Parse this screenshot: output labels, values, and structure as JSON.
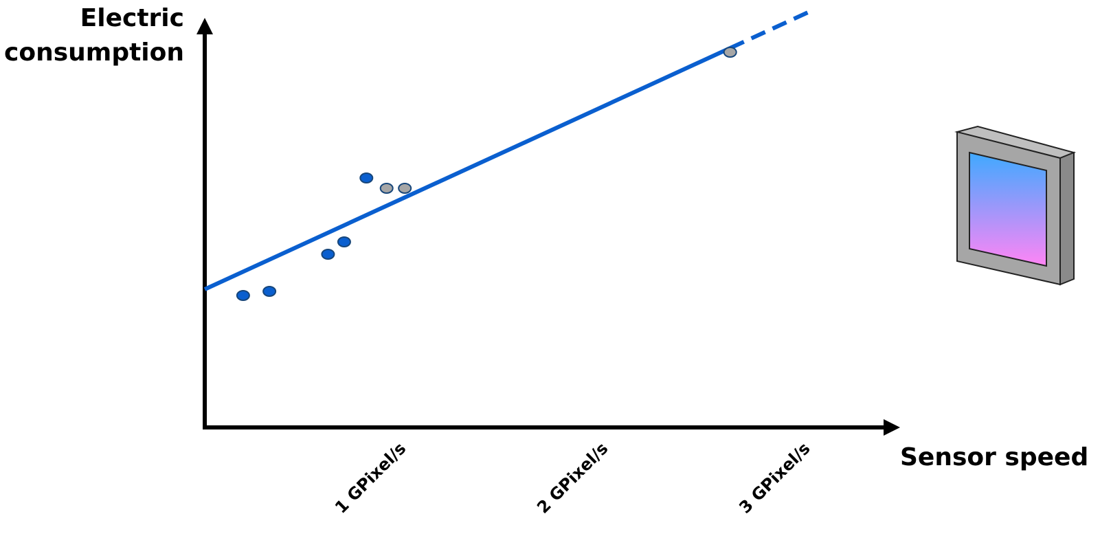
{
  "chart_data": {
    "type": "scatter",
    "xlabel": "Sensor speed",
    "ylabel_lines": [
      "Electric",
      "consumption"
    ],
    "x_ticks": [
      {
        "value": 1,
        "label": "1 GPixel/s"
      },
      {
        "value": 2,
        "label": "2 GPixel/s"
      },
      {
        "value": 3,
        "label": "3 GPixel/s"
      }
    ],
    "xlim": [
      0,
      3.4
    ],
    "ylim": [
      0,
      10
    ],
    "y_ticks_shown": false,
    "grid": false,
    "series": [
      {
        "color": "#0a5fcf",
        "points": [
          [
            0.19,
            3.2
          ],
          [
            0.32,
            3.3
          ],
          [
            0.61,
            4.2
          ],
          [
            0.69,
            4.5
          ],
          [
            0.8,
            6.05
          ]
        ]
      },
      {
        "color": "#a6a6a6",
        "points": [
          [
            0.9,
            5.8
          ],
          [
            0.99,
            5.8
          ],
          [
            2.6,
            9.1
          ]
        ]
      }
    ],
    "trend_line": {
      "color": "#0a5fcf",
      "x": [
        0,
        2.6
      ],
      "y": [
        3.35,
        9.2
      ],
      "extension_x": 3.0,
      "extension_y": 10.1,
      "extension_style": "dashed"
    },
    "decoration": "image-sensor-icon",
    "colors": {
      "axis": "#000000",
      "trend": "#0a5fcf",
      "point_blue": "#0a5fcf",
      "point_gray": "#a6a6a6",
      "point_edge": "#17467a",
      "sensor_frame": "#a6a6a6",
      "sensor_gradient_top": "#3fa9ff",
      "sensor_gradient_bottom": "#ff85f5"
    }
  }
}
